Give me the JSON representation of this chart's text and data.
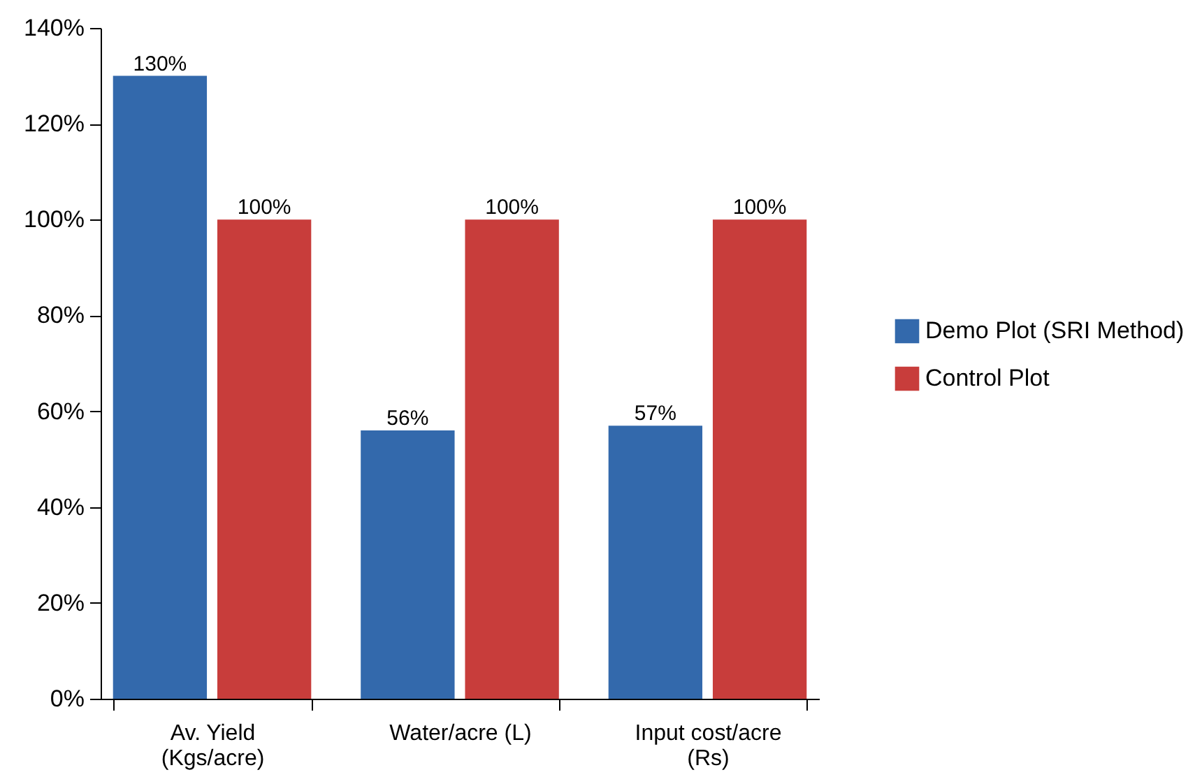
{
  "chart_data": {
    "type": "bar",
    "categories": [
      "Av. Yield\n(Kgs/acre)",
      "Water/acre (L)",
      "Input cost/acre\n(Rs)"
    ],
    "series": [
      {
        "name": "Demo Plot (SRI Method)",
        "color": "#3369ac",
        "values": [
          130,
          56,
          57
        ],
        "value_labels": [
          "130%",
          "56%",
          "57%"
        ]
      },
      {
        "name": "Control Plot",
        "color": "#c83d3b",
        "values": [
          100,
          100,
          100
        ],
        "value_labels": [
          "100%",
          "100%",
          "100%"
        ]
      }
    ],
    "ylim": [
      0,
      140
    ],
    "yticks": [
      {
        "value": 0,
        "label": "0%"
      },
      {
        "value": 20,
        "label": "20%"
      },
      {
        "value": 40,
        "label": "40%"
      },
      {
        "value": 60,
        "label": "60%"
      },
      {
        "value": 80,
        "label": "80%"
      },
      {
        "value": 100,
        "label": "100%"
      },
      {
        "value": 120,
        "label": "120%"
      },
      {
        "value": 140,
        "label": "140%"
      }
    ],
    "grid": false,
    "legend": "right"
  }
}
